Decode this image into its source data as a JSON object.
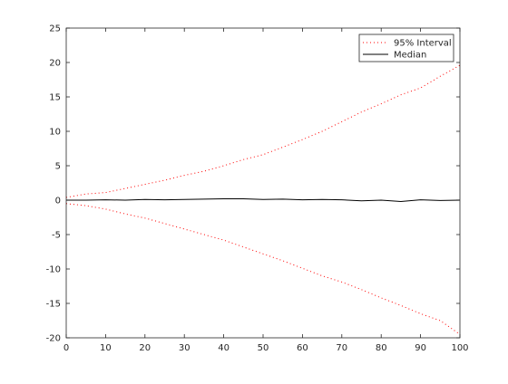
{
  "chart_data": {
    "type": "line",
    "title": "",
    "xlabel": "",
    "ylabel": "",
    "xlim": [
      0,
      100
    ],
    "ylim": [
      -20,
      25
    ],
    "x_ticks": [
      0,
      10,
      20,
      30,
      40,
      50,
      60,
      70,
      80,
      90,
      100
    ],
    "y_ticks": [
      -20,
      -15,
      -10,
      -5,
      0,
      5,
      10,
      15,
      20,
      25
    ],
    "grid": false,
    "legend_position": "top-right",
    "series": [
      {
        "name": "95% Interval",
        "style": "dotted",
        "color": "#ff0000",
        "x": [
          0,
          5,
          10,
          15,
          20,
          25,
          30,
          35,
          40,
          45,
          50,
          55,
          60,
          65,
          70,
          75,
          80,
          85,
          90,
          95,
          100
        ],
        "upper": [
          0.4,
          0.9,
          1.1,
          1.7,
          2.3,
          2.9,
          3.6,
          4.2,
          5.0,
          5.9,
          6.6,
          7.7,
          8.8,
          10.0,
          11.4,
          12.8,
          14.0,
          15.3,
          16.3,
          18.0,
          19.6
        ],
        "lower": [
          -0.5,
          -0.8,
          -1.3,
          -2.0,
          -2.6,
          -3.4,
          -4.2,
          -5.0,
          -5.8,
          -6.8,
          -7.8,
          -8.8,
          -9.9,
          -11.0,
          -11.9,
          -13.0,
          -14.2,
          -15.3,
          -16.5,
          -17.5,
          -19.5
        ]
      },
      {
        "name": "Median",
        "style": "solid",
        "color": "#000000",
        "x": [
          0,
          5,
          10,
          15,
          20,
          25,
          30,
          35,
          40,
          45,
          50,
          55,
          60,
          65,
          70,
          75,
          80,
          85,
          90,
          95,
          100
        ],
        "values": [
          0.0,
          0.0,
          0.05,
          0.0,
          0.1,
          0.05,
          0.1,
          0.15,
          0.2,
          0.2,
          0.1,
          0.15,
          0.05,
          0.1,
          0.05,
          -0.1,
          0.0,
          -0.2,
          0.05,
          -0.05,
          0.0
        ]
      }
    ]
  }
}
